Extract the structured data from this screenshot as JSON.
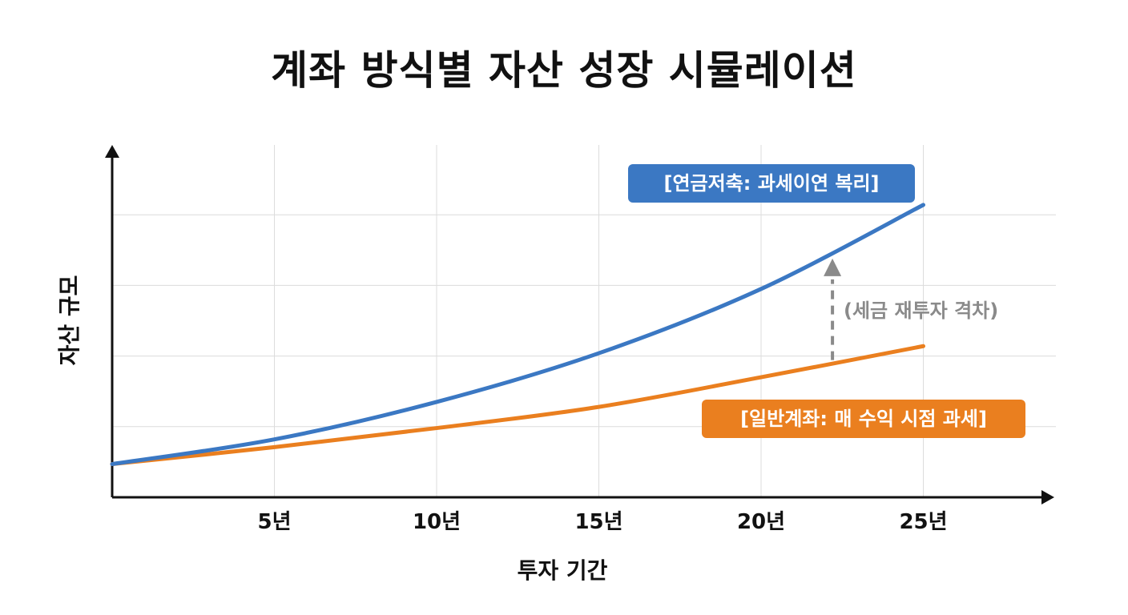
{
  "chart_data": {
    "type": "line",
    "title": "계좌 방식별 자산 성장 시뮬레이션",
    "xlabel": "투자 기간",
    "ylabel": "자산 규모",
    "x_ticks": [
      "5년",
      "10년",
      "15년",
      "20년",
      "25년"
    ],
    "xlim": [
      0,
      29
    ],
    "ylim": [
      0,
      5
    ],
    "grid": true,
    "series": [
      {
        "name": "[연금저축: 과세이연 복리]",
        "color": "#3b78c3",
        "label_color": "#3b78c3",
        "x": [
          0,
          5,
          10,
          15,
          20,
          25
        ],
        "y": [
          0.47,
          0.82,
          1.35,
          2.04,
          2.95,
          4.14
        ]
      },
      {
        "name": "[일반계좌: 매 수익 시점 과세]",
        "color": "#ea7f1f",
        "label_color": "#ea7f1f",
        "x": [
          0,
          5,
          10,
          15,
          20,
          25
        ],
        "y": [
          0.47,
          0.71,
          0.98,
          1.28,
          1.7,
          2.14
        ]
      }
    ],
    "annotations": [
      {
        "text": "(세금 재투자 격차)",
        "x": 22.2,
        "y_from": 1.92,
        "y_to": 3.38,
        "color": "#8a8a8a"
      }
    ]
  }
}
